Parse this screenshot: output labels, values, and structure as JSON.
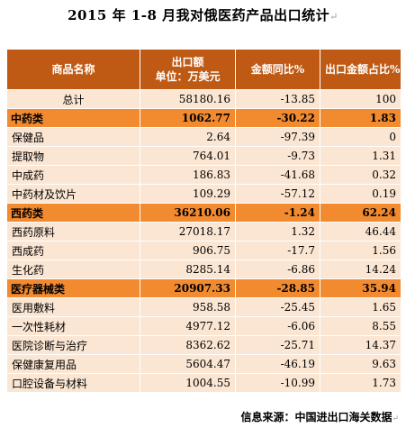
{
  "title": "2015 年 1-8 月我对俄医药产品出口统计",
  "paragraph_mark": "↵",
  "header": {
    "col1": "商品名称",
    "col2_line1": "出口额",
    "col2_line2": "单位：万美元",
    "col3": "金额同比%",
    "col4": "出口金额占比%"
  },
  "rows": [
    {
      "name": "总计",
      "value": "58180.16",
      "yoy": "-13.85",
      "share": "100",
      "kind": "total"
    },
    {
      "name": "中药类",
      "value": "1062.77",
      "yoy": "-30.22",
      "share": "1.83",
      "kind": "cat"
    },
    {
      "name": "保健品",
      "value": "2.64",
      "yoy": "-97.39",
      "share": "0",
      "kind": "sub"
    },
    {
      "name": "提取物",
      "value": "764.01",
      "yoy": "-9.73",
      "share": "1.31",
      "kind": "sub"
    },
    {
      "name": "中成药",
      "value": "186.83",
      "yoy": "-41.68",
      "share": "0.32",
      "kind": "sub"
    },
    {
      "name": "中药材及饮片",
      "value": "109.29",
      "yoy": "-57.12",
      "share": "0.19",
      "kind": "sub"
    },
    {
      "name": "西药类",
      "value": "36210.06",
      "yoy": "-1.24",
      "share": "62.24",
      "kind": "cat"
    },
    {
      "name": "西药原料",
      "value": "27018.17",
      "yoy": "1.32",
      "share": "46.44",
      "kind": "sub"
    },
    {
      "name": "西成药",
      "value": "906.75",
      "yoy": "-17.7",
      "share": "1.56",
      "kind": "sub"
    },
    {
      "name": "生化药",
      "value": "8285.14",
      "yoy": "-6.86",
      "share": "14.24",
      "kind": "sub"
    },
    {
      "name": "医疗器械类",
      "value": "20907.33",
      "yoy": "-28.85",
      "share": "35.94",
      "kind": "cat"
    },
    {
      "name": "医用敷料",
      "value": "958.58",
      "yoy": "-25.45",
      "share": "1.65",
      "kind": "sub"
    },
    {
      "name": "一次性耗材",
      "value": "4977.12",
      "yoy": "-6.06",
      "share": "8.55",
      "kind": "sub"
    },
    {
      "name": "医院诊断与治疗",
      "value": "8362.62",
      "yoy": "-25.71",
      "share": "14.37",
      "kind": "sub"
    },
    {
      "name": "保健康复用品",
      "value": "5604.47",
      "yoy": "-46.19",
      "share": "9.63",
      "kind": "sub"
    },
    {
      "name": "口腔设备与材料",
      "value": "1004.55",
      "yoy": "-10.99",
      "share": "1.73",
      "kind": "sub"
    }
  ],
  "source": "信息来源：中国进出口海关数据"
}
